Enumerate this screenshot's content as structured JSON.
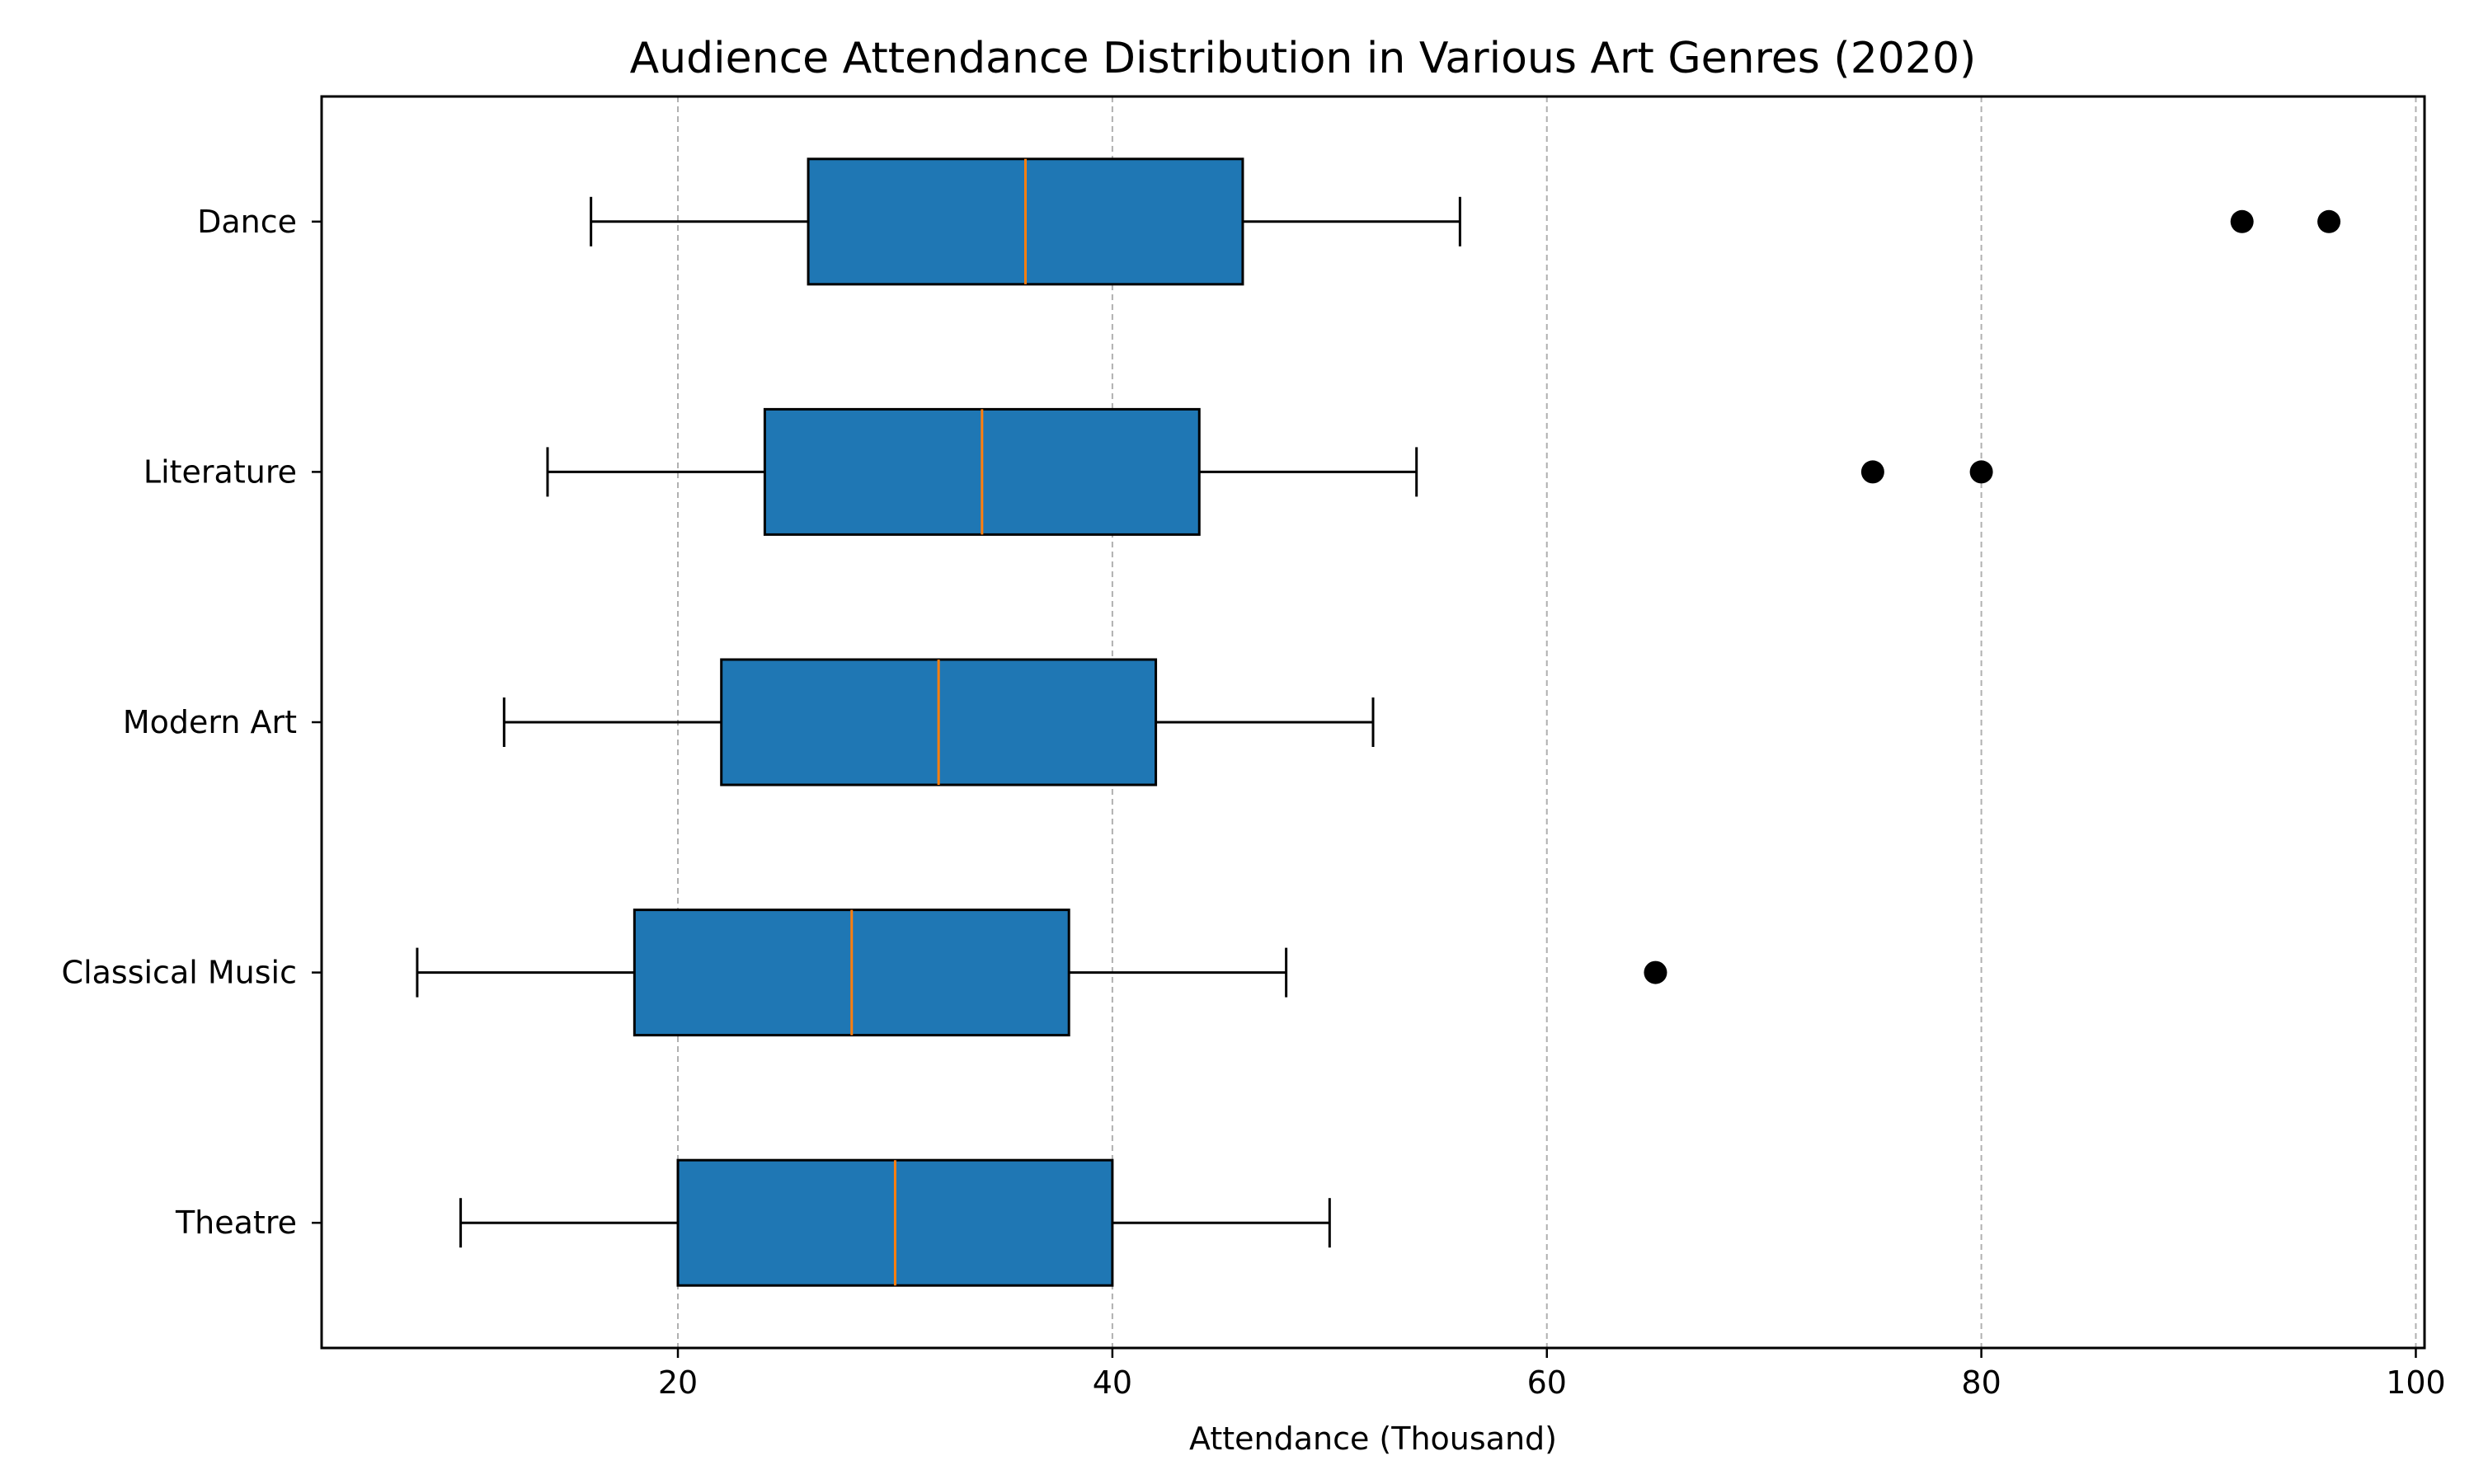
{
  "chart_data": {
    "type": "box",
    "orientation": "horizontal",
    "title": "Audience Attendance Distribution in Various Art Genres (2020)",
    "xlabel": "Attendance (Thousand)",
    "ylabel": "",
    "xlim": [
      3.6,
      100.4
    ],
    "xticks": [
      20,
      40,
      60,
      80,
      100
    ],
    "grid": {
      "x": true,
      "y": false,
      "style": "dashed"
    },
    "categories": [
      "Theatre",
      "Classical Music",
      "Modern Art",
      "Literature",
      "Dance"
    ],
    "boxes": [
      {
        "category": "Theatre",
        "whisker_low": 10,
        "q1": 20,
        "median": 30,
        "q3": 40,
        "whisker_high": 50,
        "outliers": []
      },
      {
        "category": "Classical Music",
        "whisker_low": 8,
        "q1": 18,
        "median": 28,
        "q3": 38,
        "whisker_high": 48,
        "outliers": [
          65
        ]
      },
      {
        "category": "Modern Art",
        "whisker_low": 12,
        "q1": 22,
        "median": 32,
        "q3": 42,
        "whisker_high": 52,
        "outliers": []
      },
      {
        "category": "Literature",
        "whisker_low": 14,
        "q1": 24,
        "median": 34,
        "q3": 44,
        "whisker_high": 54,
        "outliers": [
          75,
          80
        ]
      },
      {
        "category": "Dance",
        "whisker_low": 16,
        "q1": 26,
        "median": 36,
        "q3": 46,
        "whisker_high": 56,
        "outliers": [
          92,
          96
        ]
      }
    ],
    "colors": {
      "box_fill": "#1f77b4",
      "box_edge": "#000000",
      "median": "#ff7f0e",
      "whisker": "#000000",
      "outlier": "#000000",
      "grid": "#b0b0b0"
    }
  }
}
